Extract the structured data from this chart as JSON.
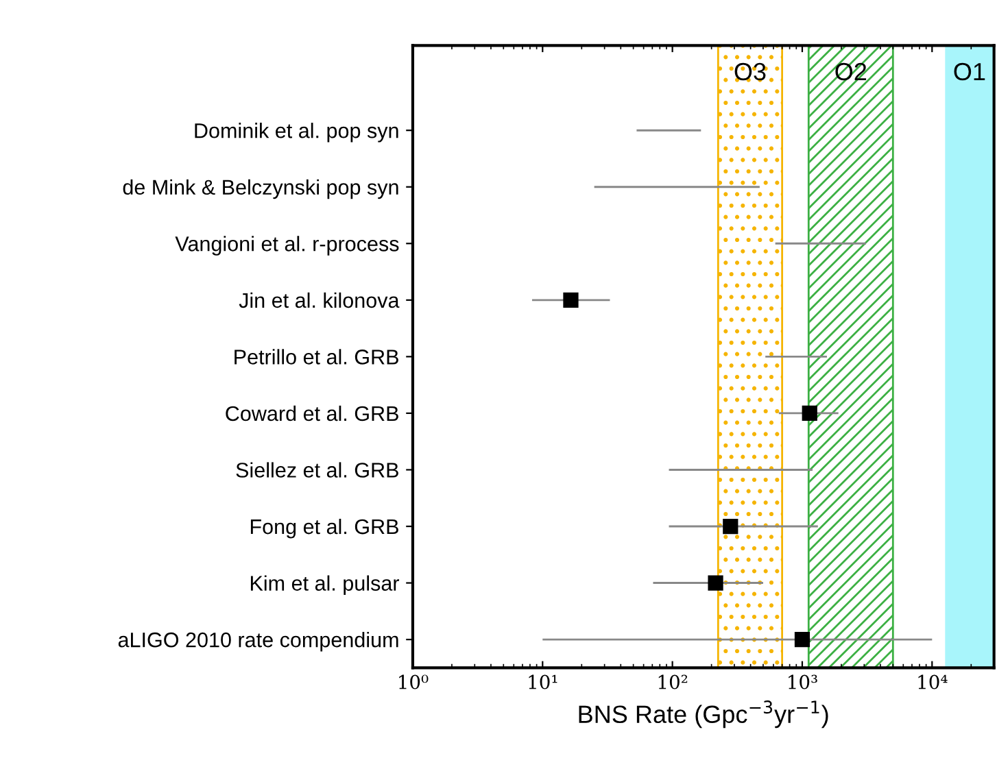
{
  "chart_data": {
    "type": "scatter",
    "xlabel": "BNS Rate (Gpc$^{−3}$yr$^{−1}$)",
    "categories": [
      "Dominik et al. pop syn",
      "de Mink & Belczynski pop syn",
      "Vangioni et al. r-process",
      "Jin et al. kilonova",
      "Petrillo et al. GRB",
      "Coward et al. GRB",
      "Siellez et al. GRB",
      "Fong et al. GRB",
      "Kim et al. pulsar",
      "aLIGO 2010 rate compendium"
    ],
    "orientation": "horizontal",
    "series": [
      {
        "type": "bar",
        "color": "#888888",
        "base": [
          53,
          25,
          620,
          8.3,
          520,
          660,
          94,
          94,
          71,
          10
        ],
        "values": [
          113,
          445,
          2480,
          24.7,
          1030,
          1240,
          1106,
          1226,
          429,
          9990
        ]
      },
      {
        "color": "#000000",
        "values": [
          null,
          null,
          null,
          16.5,
          null,
          1140,
          null,
          280,
          215,
          1000
        ]
      }
    ],
    "marker": "square",
    "log": "x",
    "xlim": [
      1,
      30000
    ],
    "xticks": [
      {
        "value": 1,
        "label": "10⁰"
      },
      {
        "value": 10,
        "label": "10¹"
      },
      {
        "value": 100,
        "label": "10²"
      },
      {
        "value": 1000,
        "label": "10³"
      },
      {
        "value": 10000,
        "label": "10⁴"
      }
    ],
    "bands": [
      {
        "axis": "x",
        "from": 225,
        "to": 700,
        "label": "O3",
        "color": "#f5b400"
      },
      {
        "axis": "x",
        "from": 1120,
        "to": 5000,
        "label": "O2",
        "color": "#3cb043"
      },
      {
        "axis": "x",
        "from": 12600,
        "to": 30000,
        "label": "O1",
        "color": "#a8f5fb"
      }
    ],
    "grid": false,
    "legend": false
  }
}
